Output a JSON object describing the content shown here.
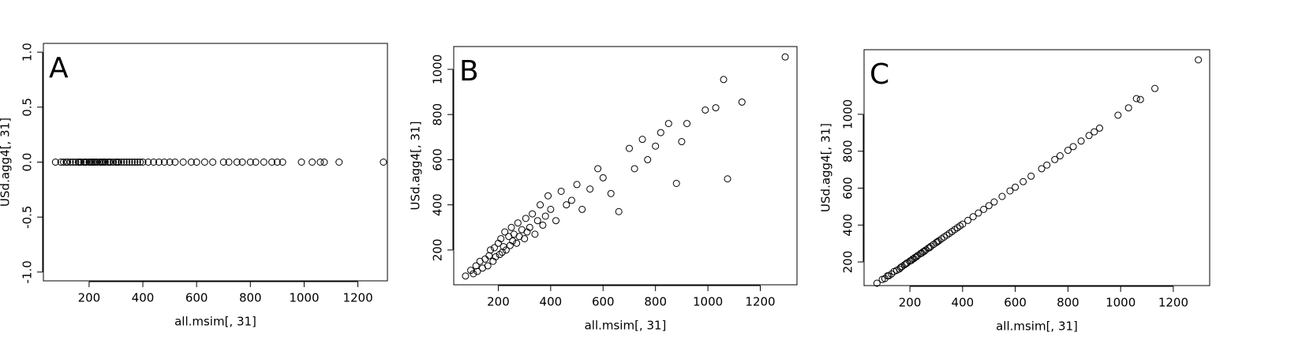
{
  "chart_data": [
    {
      "type": "scatter",
      "annotation": "A",
      "x_label": "all.msim[, 31]",
      "y_label": "USd.agg4[, 31]",
      "xlim": [
        30,
        1310
      ],
      "ylim": [
        -1.08,
        1.08
      ],
      "xticks": [
        200,
        400,
        600,
        800,
        1000,
        1200
      ],
      "yticks": [
        {
          "value": -1.0,
          "label": "-1.0"
        },
        -0.5,
        {
          "value": 0.0,
          "label": "0.0"
        },
        0.5,
        {
          "value": 1.0,
          "label": "1.0"
        }
      ],
      "color": "#000000",
      "x": [
        75,
        95,
        105,
        115,
        120,
        130,
        140,
        150,
        160,
        165,
        170,
        180,
        185,
        190,
        200,
        205,
        210,
        215,
        220,
        225,
        230,
        240,
        245,
        250,
        255,
        260,
        270,
        275,
        280,
        290,
        300,
        305,
        310,
        320,
        330,
        340,
        350,
        360,
        370,
        380,
        390,
        400,
        420,
        440,
        460,
        480,
        500,
        520,
        550,
        580,
        600,
        630,
        660,
        700,
        720,
        750,
        770,
        800,
        820,
        850,
        880,
        900,
        920,
        990,
        1030,
        1060,
        1075,
        1130,
        1295
      ],
      "y": [
        0,
        0,
        0,
        0,
        0,
        0,
        0,
        0,
        0,
        0,
        0,
        0,
        0,
        0,
        0,
        0,
        0,
        0,
        0,
        0,
        0,
        0,
        0,
        0,
        0,
        0,
        0,
        0,
        0,
        0,
        0,
        0,
        0,
        0,
        0,
        0,
        0,
        0,
        0,
        0,
        0,
        0,
        0,
        0,
        0,
        0,
        0,
        0,
        0,
        0,
        0,
        0,
        0,
        0,
        0,
        0,
        0,
        0,
        0,
        0,
        0,
        0,
        0,
        0,
        0,
        0,
        0,
        0,
        0
      ]
    },
    {
      "type": "scatter",
      "annotation": "B",
      "x_label": "all.msim[, 31]",
      "y_label": "USd.agg4[, 31]",
      "xlim": [
        30,
        1340
      ],
      "ylim": [
        46,
        1101
      ],
      "xticks": [
        200,
        400,
        600,
        800,
        1000,
        1200
      ],
      "yticks": [
        200,
        400,
        600,
        800,
        1000
      ],
      "color": "#000000",
      "x": [
        75,
        95,
        105,
        115,
        120,
        130,
        140,
        150,
        160,
        165,
        170,
        180,
        185,
        190,
        200,
        205,
        210,
        215,
        220,
        225,
        230,
        240,
        245,
        250,
        255,
        260,
        270,
        275,
        280,
        290,
        300,
        305,
        310,
        320,
        330,
        340,
        350,
        360,
        370,
        380,
        390,
        400,
        420,
        440,
        460,
        480,
        500,
        520,
        550,
        580,
        600,
        630,
        660,
        700,
        720,
        750,
        770,
        800,
        820,
        850,
        880,
        900,
        920,
        990,
        1030,
        1060,
        1075,
        1130,
        1295
      ],
      "y": [
        85,
        110,
        95,
        130,
        105,
        150,
        120,
        160,
        130,
        175,
        200,
        150,
        210,
        170,
        230,
        180,
        250,
        190,
        215,
        280,
        200,
        260,
        220,
        300,
        240,
        270,
        230,
        320,
        260,
        290,
        250,
        340,
        280,
        300,
        360,
        270,
        330,
        400,
        310,
        350,
        440,
        380,
        330,
        460,
        400,
        420,
        490,
        380,
        470,
        560,
        520,
        450,
        370,
        650,
        560,
        690,
        600,
        660,
        720,
        760,
        495,
        680,
        760,
        820,
        830,
        955,
        515,
        855,
        1055
      ]
    },
    {
      "type": "scatter",
      "annotation": "C",
      "x_label": "all.msim[, 31]",
      "y_label": "USd.agg4[, 31]",
      "xlim": [
        26,
        1338
      ],
      "ylim": [
        72,
        1350
      ],
      "xticks": [
        200,
        400,
        600,
        800,
        1000,
        1200
      ],
      "yticks": [
        200,
        400,
        600,
        800,
        1000
      ],
      "color": "#000000",
      "x": [
        75,
        95,
        105,
        115,
        120,
        130,
        140,
        150,
        160,
        165,
        170,
        180,
        185,
        190,
        200,
        205,
        210,
        215,
        220,
        225,
        230,
        240,
        245,
        250,
        255,
        260,
        270,
        275,
        280,
        290,
        300,
        305,
        310,
        320,
        330,
        340,
        350,
        360,
        370,
        380,
        390,
        400,
        420,
        440,
        460,
        480,
        500,
        520,
        550,
        580,
        600,
        630,
        660,
        700,
        720,
        750,
        770,
        800,
        820,
        850,
        880,
        900,
        920,
        990,
        1030,
        1060,
        1075,
        1130,
        1295
      ],
      "y": [
        85,
        105,
        110,
        125,
        125,
        135,
        148,
        155,
        162,
        170,
        175,
        185,
        190,
        195,
        205,
        208,
        215,
        218,
        225,
        228,
        235,
        245,
        248,
        255,
        258,
        265,
        275,
        278,
        285,
        295,
        305,
        310,
        315,
        325,
        335,
        345,
        355,
        365,
        375,
        385,
        395,
        405,
        425,
        445,
        465,
        485,
        505,
        525,
        555,
        585,
        605,
        635,
        665,
        705,
        725,
        755,
        775,
        805,
        825,
        855,
        885,
        905,
        925,
        995,
        1035,
        1085,
        1080,
        1140,
        1295
      ]
    }
  ]
}
